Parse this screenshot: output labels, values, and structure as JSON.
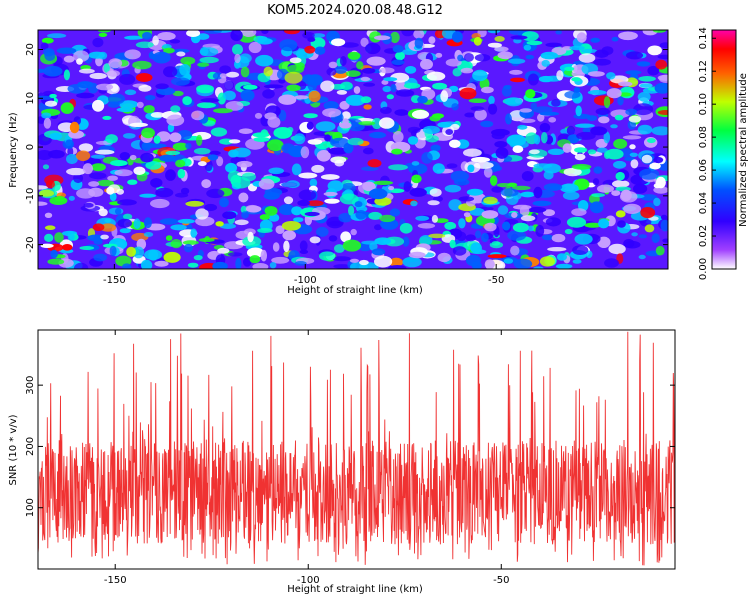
{
  "title": "KOM5.2024.020.08.48.G12",
  "colors": {
    "snr_line": "#f03232"
  },
  "chart_data": [
    {
      "type": "heatmap",
      "name": "spectrogram",
      "xlabel": "Height of straight line (km)",
      "ylabel": "Frequency (Hz)",
      "xlim": [
        -170,
        -5
      ],
      "ylim": [
        -25,
        24
      ],
      "xticks": [
        -150,
        -100,
        -50
      ],
      "yticks": [
        -20,
        -10,
        0,
        10,
        20
      ],
      "colorbar": {
        "label": "Normalized spectral amplitude",
        "range": [
          0,
          0.145
        ],
        "ticks": [
          "0.00",
          "0.02",
          "0.04",
          "0.06",
          "0.08",
          "0.10",
          "0.12",
          "0.14"
        ],
        "colormap": [
          "#ffffff",
          "#7a00ff",
          "#0000ff",
          "#00ffff",
          "#00ff00",
          "#ffff00",
          "#ff0000",
          "#ff00aa"
        ]
      },
      "description_values": "dense speckled noise field mostly 0.01-0.05 with sparse peaks up to ~0.14"
    },
    {
      "type": "line",
      "name": "snr",
      "xlabel": "Height of straight line (km)",
      "ylabel": "SNR (10 * v/v)",
      "xlim": [
        -170,
        -5
      ],
      "ylim": [
        0,
        390
      ],
      "xticks": [
        -150,
        -100,
        -50
      ],
      "yticks": [
        100,
        200,
        300
      ],
      "series": [
        {
          "values_summary": "highly oscillatory noise, typical 50-200, spikes up to ~385"
        }
      ]
    }
  ]
}
